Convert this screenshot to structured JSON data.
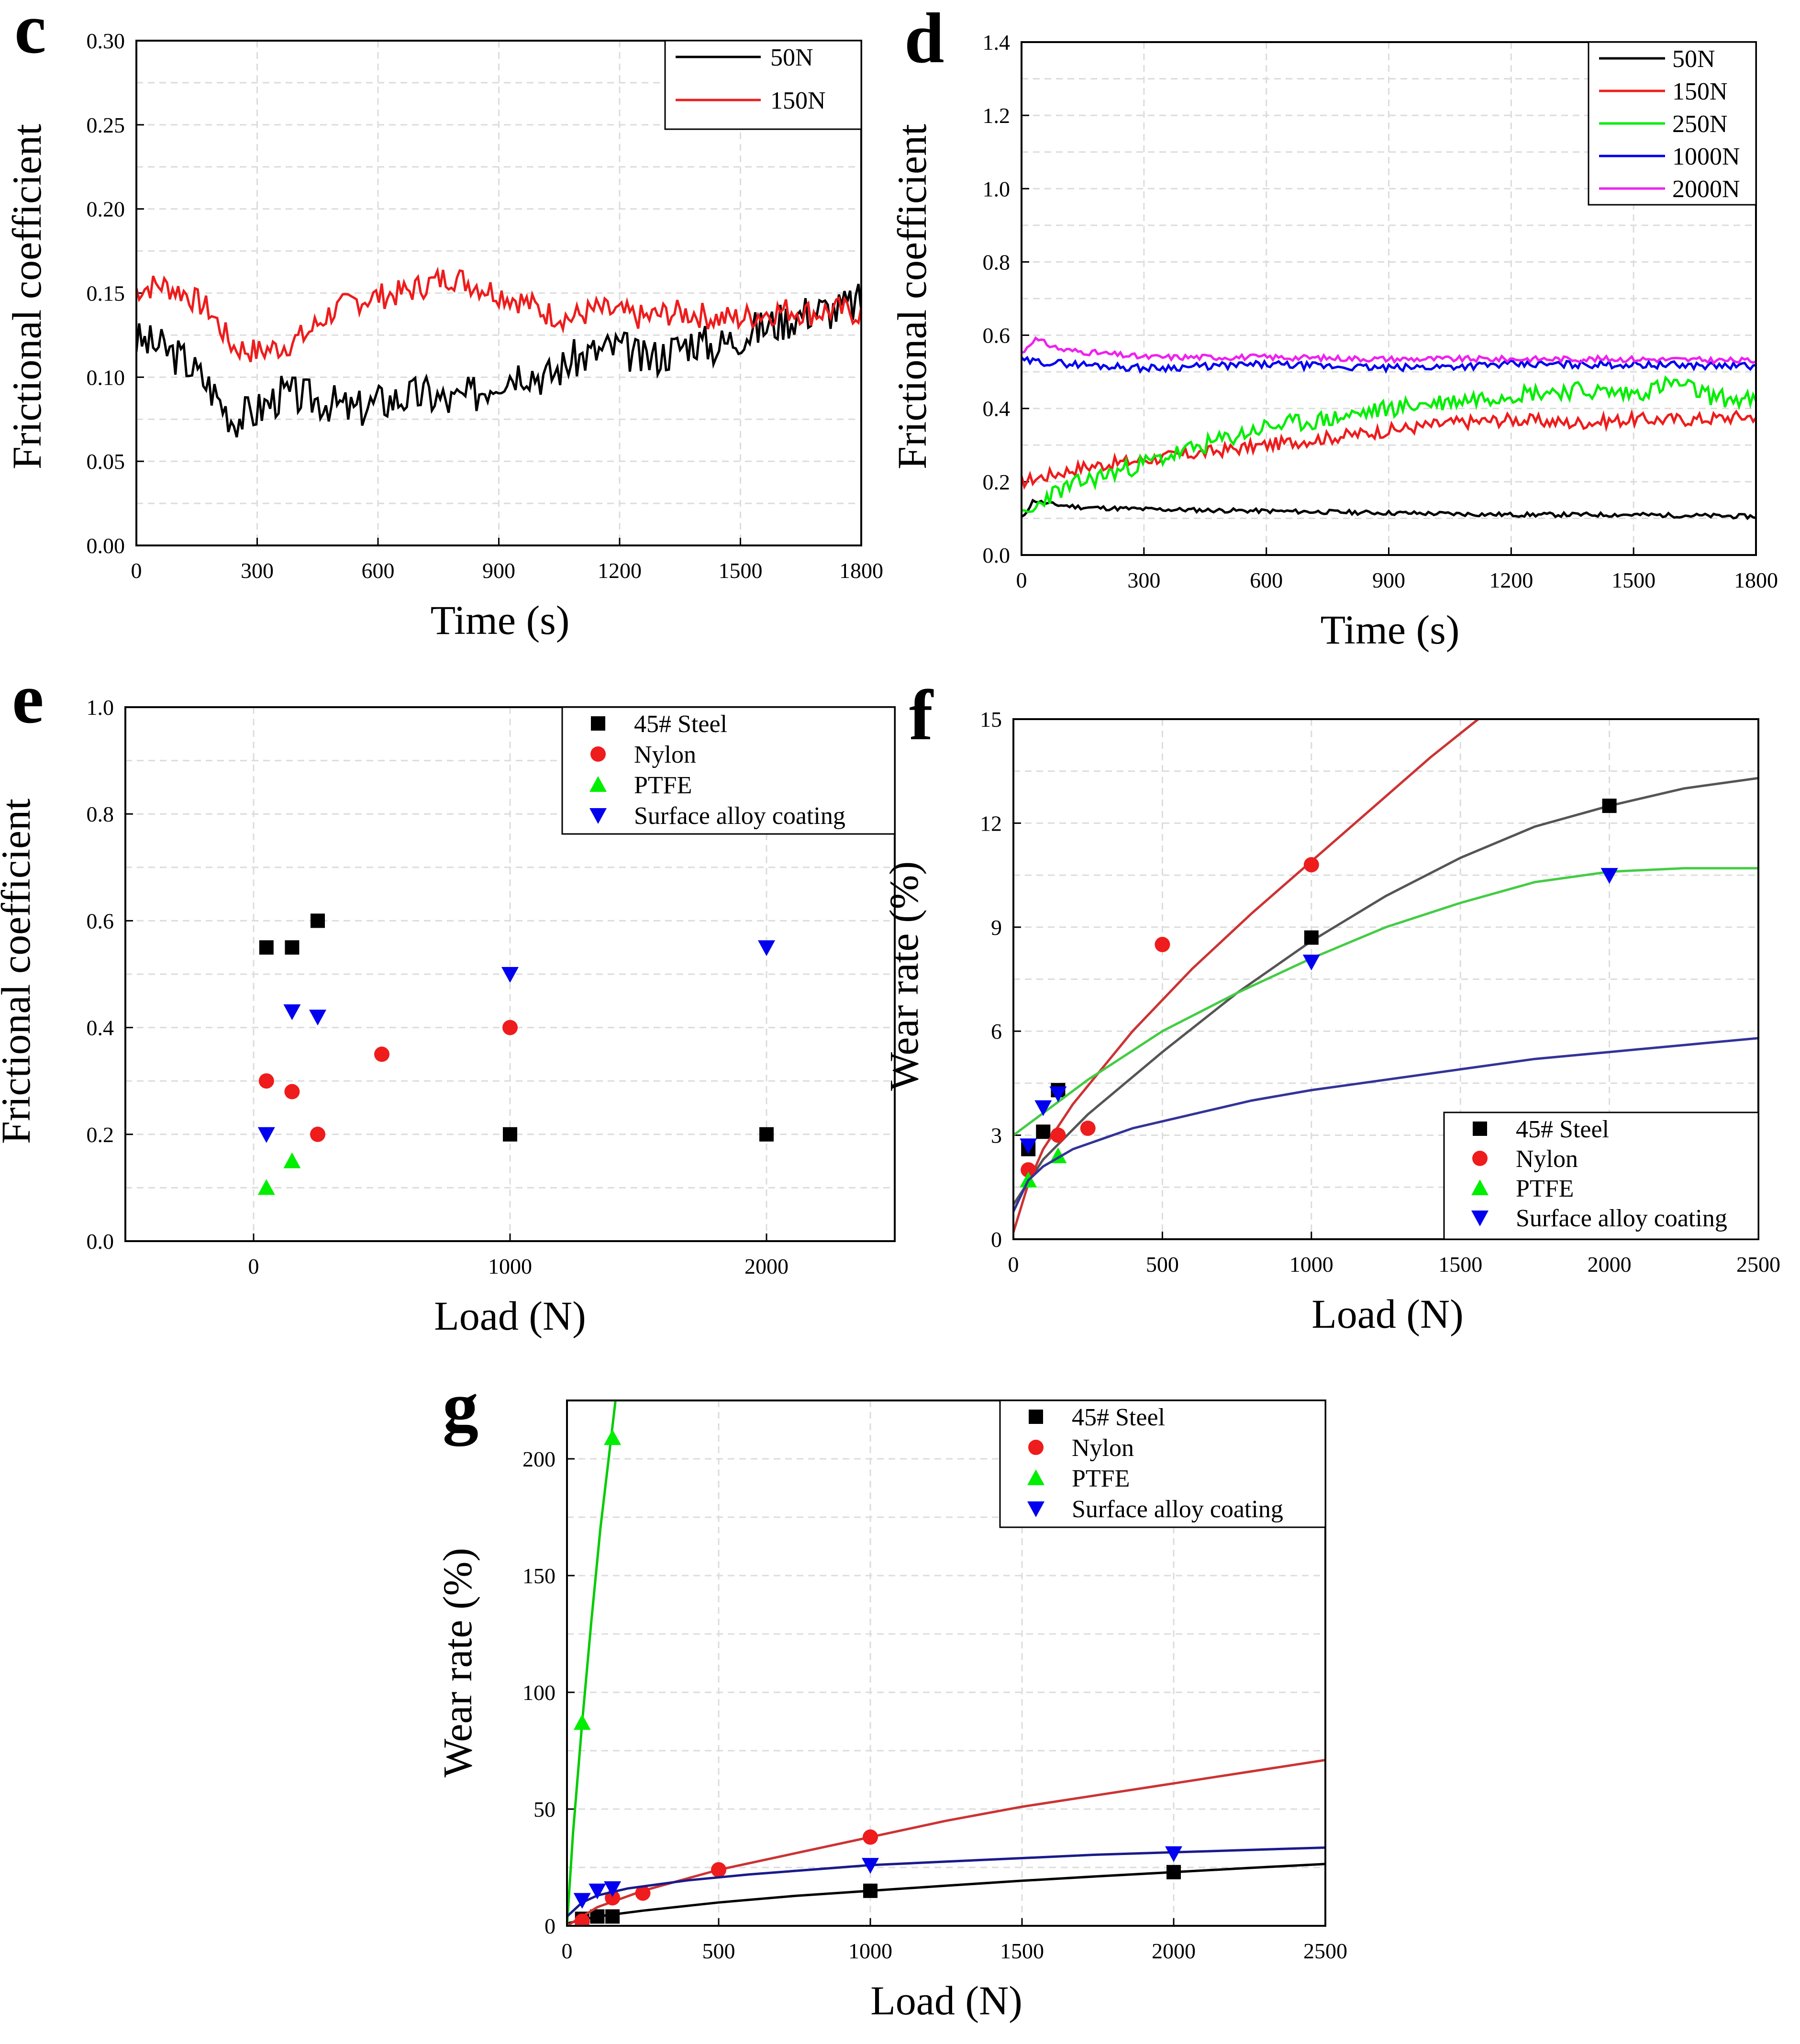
{
  "chart_data": [
    {
      "id": "c",
      "panel_label": "c",
      "type": "line",
      "xlabel": "Time (s)",
      "ylabel": "Frictional coefficient",
      "xlim": [
        0,
        1800
      ],
      "ylim": [
        0,
        0.3
      ],
      "xticks": [
        0,
        300,
        600,
        900,
        1200,
        1500,
        1800
      ],
      "xtick_labels": [
        "0",
        "300",
        "600",
        "900",
        "1200",
        "1500",
        "1800"
      ],
      "yticks": [
        0,
        0.05,
        0.1,
        0.15,
        0.2,
        0.25,
        0.3
      ],
      "ytick_labels": [
        "0.00",
        "0.05",
        "0.10",
        "0.15",
        "0.20",
        "0.25",
        "0.30"
      ],
      "grid": true,
      "legend_position": "top-right",
      "series": [
        {
          "name": "50N",
          "color": "#000000",
          "noise": 0.012,
          "seed": 3,
          "x": [
            0,
            60,
            120,
            180,
            240,
            300,
            360,
            420,
            480,
            540,
            600,
            660,
            720,
            780,
            840,
            900,
            960,
            1020,
            1080,
            1140,
            1200,
            1260,
            1320,
            1380,
            1440,
            1500,
            1560,
            1620,
            1680,
            1740,
            1800
          ],
          "values": [
            0.122,
            0.118,
            0.11,
            0.095,
            0.075,
            0.08,
            0.09,
            0.088,
            0.085,
            0.08,
            0.085,
            0.088,
            0.09,
            0.085,
            0.09,
            0.1,
            0.105,
            0.1,
            0.11,
            0.115,
            0.118,
            0.11,
            0.115,
            0.122,
            0.118,
            0.125,
            0.13,
            0.135,
            0.14,
            0.14,
            0.145
          ]
        },
        {
          "name": "150N",
          "color": "#ee1c1c",
          "noise": 0.008,
          "seed": 7,
          "x": [
            0,
            60,
            120,
            180,
            240,
            300,
            360,
            420,
            480,
            540,
            600,
            660,
            720,
            780,
            840,
            900,
            960,
            1020,
            1080,
            1140,
            1200,
            1260,
            1320,
            1380,
            1440,
            1500,
            1560,
            1620,
            1680,
            1740,
            1800
          ],
          "values": [
            0.152,
            0.155,
            0.15,
            0.14,
            0.118,
            0.115,
            0.118,
            0.125,
            0.138,
            0.145,
            0.148,
            0.15,
            0.155,
            0.16,
            0.155,
            0.15,
            0.145,
            0.138,
            0.135,
            0.14,
            0.138,
            0.135,
            0.138,
            0.138,
            0.135,
            0.135,
            0.138,
            0.14,
            0.138,
            0.14,
            0.138
          ]
        }
      ]
    },
    {
      "id": "d",
      "panel_label": "d",
      "type": "line",
      "xlabel": "Time (s)",
      "ylabel": "Frictional coefficient",
      "xlim": [
        0,
        1800
      ],
      "ylim": [
        0,
        1.4
      ],
      "xticks": [
        0,
        300,
        600,
        900,
        1200,
        1500,
        1800
      ],
      "xtick_labels": [
        "0",
        "300",
        "600",
        "900",
        "1200",
        "1500",
        "1800"
      ],
      "yticks": [
        0,
        0.2,
        0.4,
        0.6,
        0.8,
        1.0,
        1.2,
        1.4
      ],
      "ytick_labels": [
        "0.0",
        "0.2",
        "0.4",
        "0.6",
        "0.8",
        "1.0",
        "1.2",
        "1.4"
      ],
      "grid": true,
      "legend_position": "top-right",
      "series": [
        {
          "name": "50N",
          "color": "#000000",
          "noise": 0.006,
          "seed": 11,
          "x": [
            0,
            30,
            60,
            150,
            300,
            600,
            900,
            1200,
            1500,
            1800
          ],
          "values": [
            0.1,
            0.15,
            0.14,
            0.13,
            0.125,
            0.12,
            0.115,
            0.11,
            0.11,
            0.105
          ]
        },
        {
          "name": "150N",
          "color": "#ee1c1c",
          "noise": 0.018,
          "seed": 17,
          "x": [
            0,
            150,
            300,
            450,
            600,
            750,
            900,
            1050,
            1200,
            1350,
            1500,
            1650,
            1800
          ],
          "values": [
            0.2,
            0.24,
            0.26,
            0.28,
            0.3,
            0.32,
            0.34,
            0.36,
            0.37,
            0.36,
            0.37,
            0.37,
            0.38
          ]
        },
        {
          "name": "250N",
          "color": "#00ee00",
          "noise": 0.025,
          "seed": 23,
          "x": [
            0,
            30,
            60,
            150,
            300,
            450,
            600,
            750,
            900,
            1050,
            1200,
            1350,
            1500,
            1600,
            1700,
            1800
          ],
          "values": [
            0.1,
            0.12,
            0.16,
            0.2,
            0.25,
            0.3,
            0.35,
            0.37,
            0.4,
            0.42,
            0.44,
            0.45,
            0.44,
            0.47,
            0.43,
            0.42
          ]
        },
        {
          "name": "1000N",
          "color": "#0000ee",
          "noise": 0.01,
          "seed": 29,
          "x": [
            0,
            300,
            600,
            900,
            1200,
            1500,
            1800
          ],
          "values": [
            0.53,
            0.51,
            0.52,
            0.51,
            0.52,
            0.52,
            0.515
          ]
        },
        {
          "name": "2000N",
          "color": "#ee22ee",
          "noise": 0.008,
          "seed": 31,
          "x": [
            0,
            30,
            100,
            300,
            600,
            900,
            1200,
            1500,
            1800
          ],
          "values": [
            0.55,
            0.59,
            0.56,
            0.54,
            0.54,
            0.535,
            0.535,
            0.535,
            0.53
          ]
        }
      ]
    },
    {
      "id": "e",
      "panel_label": "e",
      "type": "scatter",
      "xlabel": "Load  (N)",
      "ylabel": "Frictional coefficient",
      "xlim": [
        -500,
        2500
      ],
      "ylim": [
        0,
        1.0
      ],
      "xticks": [
        0,
        1000,
        2000
      ],
      "xtick_labels": [
        "0",
        "1000",
        "2000"
      ],
      "yticks": [
        0,
        0.2,
        0.4,
        0.6,
        0.8,
        1.0
      ],
      "ytick_labels": [
        "0.0",
        "0.2",
        "0.4",
        "0.6",
        "0.8",
        "1.0"
      ],
      "grid": true,
      "legend_position": "top-right",
      "series": [
        {
          "name": "45# Steel",
          "color": "#000000",
          "marker": "square",
          "x": [
            50,
            150,
            250,
            1000,
            2000
          ],
          "values": [
            0.55,
            0.55,
            0.6,
            0.2,
            0.2
          ]
        },
        {
          "name": "Nylon",
          "color": "#ee1c1c",
          "marker": "circle",
          "x": [
            50,
            150,
            250,
            500,
            1000
          ],
          "values": [
            0.3,
            0.28,
            0.2,
            0.35,
            0.4
          ]
        },
        {
          "name": "PTFE",
          "color": "#00ee00",
          "marker": "triangle-up",
          "x": [
            50,
            150
          ],
          "values": [
            0.1,
            0.15
          ]
        },
        {
          "name": "Surface alloy coating",
          "color": "#0000ee",
          "marker": "triangle-down",
          "x": [
            50,
            150,
            250,
            1000,
            2000
          ],
          "values": [
            0.2,
            0.43,
            0.42,
            0.5,
            0.55
          ]
        }
      ]
    },
    {
      "id": "f",
      "panel_label": "f",
      "type": "scatter",
      "xlabel": "Load (N)",
      "ylabel": "Wear rate (%)",
      "xlim": [
        0,
        2500
      ],
      "ylim": [
        0,
        15
      ],
      "xticks": [
        0,
        500,
        1000,
        1500,
        2000,
        2500
      ],
      "xtick_labels": [
        "0",
        "500",
        "1000",
        "1500",
        "2000",
        "2500"
      ],
      "yticks": [
        0,
        3,
        6,
        9,
        12,
        15
      ],
      "ytick_labels": [
        "0",
        "3",
        "6",
        "9",
        "12",
        "15"
      ],
      "grid": true,
      "legend_position": "bottom-right",
      "series": [
        {
          "name": "45# Steel",
          "color": "#000000",
          "marker": "square",
          "x": [
            50,
            100,
            150,
            1000,
            2000
          ],
          "values": [
            2.6,
            3.1,
            4.3,
            8.7,
            12.5
          ],
          "fit_x": [
            0,
            100,
            250,
            500,
            750,
            1000,
            1250,
            1500,
            1750,
            2000,
            2250,
            2500
          ],
          "fit_y": [
            1.0,
            2.3,
            3.6,
            5.4,
            7.1,
            8.6,
            9.9,
            11.0,
            11.9,
            12.5,
            13.0,
            13.3
          ],
          "fit_color": "#555555"
        },
        {
          "name": "Nylon",
          "color": "#ee1c1c",
          "marker": "circle",
          "x": [
            50,
            150,
            250,
            500,
            1000
          ],
          "values": [
            2.0,
            3.0,
            3.2,
            8.5,
            10.8
          ],
          "fit_x": [
            0,
            50,
            100,
            200,
            400,
            600,
            800,
            1000,
            1200,
            1400,
            1560
          ],
          "fit_y": [
            0.2,
            1.6,
            2.6,
            3.9,
            6.0,
            7.8,
            9.4,
            10.9,
            12.4,
            13.9,
            15.0
          ],
          "fit_color": "#cc3333"
        },
        {
          "name": "PTFE",
          "color": "#00ee00",
          "marker": "triangle-up",
          "x": [
            50,
            150
          ],
          "values": [
            1.7,
            2.4
          ],
          "fit_x": [
            0,
            250,
            500,
            750,
            1000,
            1250,
            1500,
            1750,
            2000,
            2250,
            2500
          ],
          "fit_y": [
            3.0,
            4.6,
            6.0,
            7.1,
            8.1,
            9.0,
            9.7,
            10.3,
            10.6,
            10.7,
            10.7
          ],
          "fit_color": "#44cc44"
        },
        {
          "name": "Surface alloy coating",
          "color": "#0000ee",
          "marker": "triangle-down",
          "x": [
            50,
            100,
            150,
            1000,
            2000
          ],
          "values": [
            2.7,
            3.8,
            4.2,
            8.0,
            10.5
          ],
          "fit_x": [
            0,
            50,
            100,
            200,
            400,
            600,
            800,
            1000,
            1250,
            1500,
            1750,
            2000,
            2250,
            2500
          ],
          "fit_y": [
            0.8,
            1.7,
            2.1,
            2.6,
            3.2,
            3.6,
            4.0,
            4.3,
            4.6,
            4.9,
            5.2,
            5.4,
            5.6,
            5.8
          ],
          "fit_color": "#333399"
        }
      ]
    },
    {
      "id": "g",
      "panel_label": "g",
      "type": "scatter",
      "xlabel": "Load (N)",
      "ylabel": "Wear rate (%)",
      "xlim": [
        0,
        2500
      ],
      "ylim": [
        0,
        225
      ],
      "xticks": [
        0,
        500,
        1000,
        1500,
        2000,
        2500
      ],
      "xtick_labels": [
        "0",
        "500",
        "1000",
        "1500",
        "2000",
        "2500"
      ],
      "yticks": [
        0,
        50,
        100,
        150,
        200
      ],
      "ytick_labels": [
        "0",
        "50",
        "100",
        "150",
        "200"
      ],
      "grid": true,
      "legend_position": "top-right",
      "series": [
        {
          "name": "45# Steel",
          "color": "#000000",
          "marker": "square",
          "x": [
            50,
            100,
            150,
            1000,
            2000
          ],
          "values": [
            3,
            4,
            4,
            15,
            23
          ],
          "fit_x": [
            0,
            100,
            250,
            500,
            750,
            1000,
            1250,
            1500,
            1750,
            2000,
            2250,
            2500
          ],
          "fit_y": [
            1,
            4,
            6.5,
            10,
            12.8,
            15,
            17.2,
            19.3,
            21.2,
            23,
            24.8,
            26.5
          ],
          "fit_color": "#000000"
        },
        {
          "name": "Nylon",
          "color": "#ee1c1c",
          "marker": "circle",
          "x": [
            50,
            150,
            250,
            500,
            1000
          ],
          "values": [
            2,
            12,
            14,
            24,
            38
          ],
          "fit_x": [
            0,
            100,
            250,
            500,
            750,
            1000,
            1250,
            1500,
            1750,
            2000,
            2250,
            2500
          ],
          "fit_y": [
            0,
            8,
            15,
            24,
            31,
            38,
            45,
            51,
            56,
            61,
            66,
            71
          ],
          "fit_color": "#cc3333"
        },
        {
          "name": "PTFE",
          "color": "#00ee00",
          "marker": "triangle-up",
          "x": [
            50,
            150
          ],
          "values": [
            87,
            209
          ],
          "fit_x": [
            0,
            20,
            50,
            80,
            110,
            140,
            160
          ],
          "fit_y": [
            0,
            40,
            87,
            130,
            170,
            203,
            225
          ],
          "fit_color": "#00cc00"
        },
        {
          "name": "Surface alloy coating",
          "color": "#0000ee",
          "marker": "triangle-down",
          "x": [
            50,
            100,
            150,
            1000,
            2000
          ],
          "values": [
            11,
            15,
            16,
            26,
            31
          ],
          "fit_x": [
            0,
            50,
            100,
            200,
            400,
            600,
            800,
            1000,
            1250,
            1500,
            1750,
            2000,
            2250,
            2500
          ],
          "fit_y": [
            4,
            10,
            13,
            16,
            19.5,
            22,
            24,
            26,
            27.5,
            29,
            30.5,
            31.5,
            32.5,
            33.5
          ],
          "fit_color": "#1a1a8c"
        }
      ]
    }
  ]
}
